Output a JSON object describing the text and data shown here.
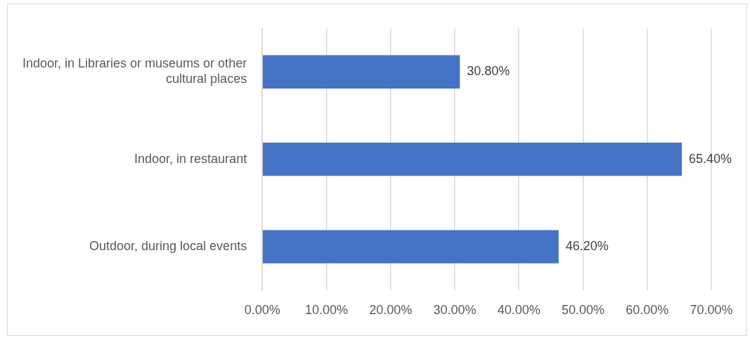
{
  "chart_data": {
    "type": "bar",
    "orientation": "horizontal",
    "categories": [
      "Indoor, in Libraries or museums or other cultural places",
      "Indoor, in restaurant",
      "Outdoor, during local events"
    ],
    "values": [
      30.8,
      65.4,
      46.2
    ],
    "value_labels": [
      "30.80%",
      "65.40%",
      "46.20%"
    ],
    "color": "#4472c4",
    "xlim": [
      0,
      70
    ],
    "xticks": [
      {
        "value": 0,
        "label": "0.00%"
      },
      {
        "value": 10,
        "label": "10.00%"
      },
      {
        "value": 20,
        "label": "20.00%"
      },
      {
        "value": 30,
        "label": "30.00%"
      },
      {
        "value": 40,
        "label": "40.00%"
      },
      {
        "value": 50,
        "label": "50.00%"
      },
      {
        "value": 60,
        "label": "60.00%"
      },
      {
        "value": 70,
        "label": "70.00%"
      }
    ],
    "grid": "x",
    "legend": false
  }
}
